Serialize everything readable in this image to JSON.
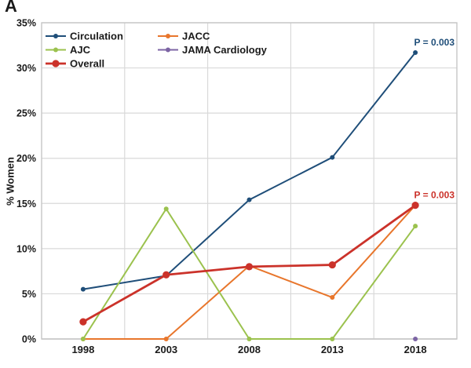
{
  "panel_label": "A",
  "chart_data": {
    "type": "line",
    "title": "",
    "ylabel": "% Women",
    "xlabel": "",
    "categories": [
      "1998",
      "2003",
      "2008",
      "2013",
      "2018"
    ],
    "ylim": [
      0,
      35
    ],
    "y_tick_step": 5,
    "y_tick_labels": [
      "0%",
      "5%",
      "10%",
      "15%",
      "20%",
      "25%",
      "30%",
      "35%"
    ],
    "grid": true,
    "legend_position": "inside-top-left-two-columns",
    "colors": {
      "gridline": "#d9d9d9",
      "plot_border": "#c6c6c6",
      "axis_line": "#bfbfbf",
      "tick_text": "#1a1a1a"
    },
    "series": [
      {
        "name": "Circulation",
        "color": "#1F4E79",
        "line_width": 2,
        "marker_radius": 3,
        "values": [
          5.5,
          7.0,
          15.4,
          20.1,
          31.7
        ],
        "p_label": "P = 0.003"
      },
      {
        "name": "JACC",
        "color": "#E8762C",
        "line_width": 2,
        "marker_radius": 3,
        "values": [
          0,
          0,
          8.1,
          4.6,
          14.8
        ],
        "p_label": ""
      },
      {
        "name": "AJC",
        "color": "#9BC24E",
        "line_width": 2,
        "marker_radius": 3,
        "values": [
          0,
          14.4,
          0,
          0,
          12.5
        ],
        "p_label": ""
      },
      {
        "name": "JAMA Cardiology",
        "color": "#7C64A4",
        "line_width": 2,
        "marker_radius": 3,
        "values": [
          null,
          null,
          null,
          null,
          0
        ],
        "p_label": ""
      },
      {
        "name": "Overall",
        "color": "#CB322A",
        "line_width": 2.8,
        "marker_radius": 4.6,
        "values": [
          1.9,
          7.1,
          8.0,
          8.2,
          14.8
        ],
        "p_label": "P = 0.003"
      }
    ]
  }
}
